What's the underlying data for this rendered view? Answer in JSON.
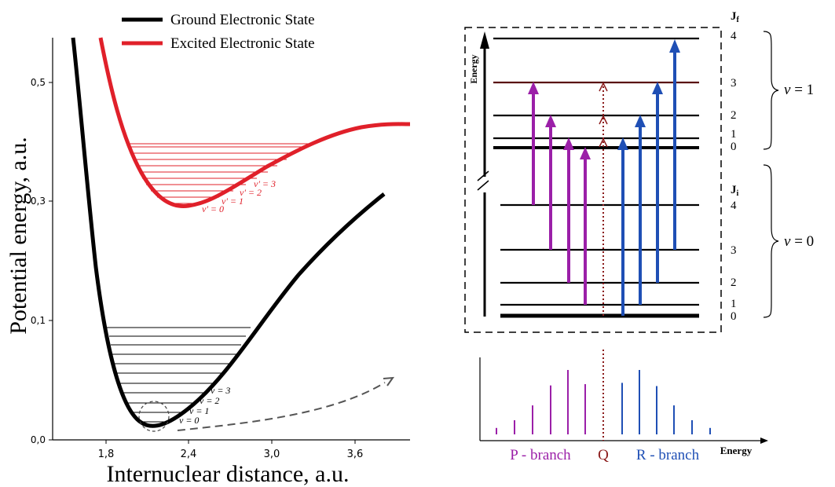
{
  "potential_plot": {
    "legend": {
      "ground": "Ground Electronic State",
      "excited": "Excited Electronic State"
    },
    "xlabel": "Internuclear distance, a.u.",
    "ylabel": "Potential energy, a.u.",
    "xticks": [
      "1,8",
      "2,4",
      "3,0",
      "3,6"
    ],
    "yticks": [
      "0,0",
      "0,1",
      "0,3",
      "0,5"
    ],
    "ground_levels": [
      "v = 0",
      "v = 1",
      "v = 2",
      "v = 3"
    ],
    "excited_levels": [
      "v' = 0",
      "v' = 1",
      "v' = 2",
      "v' = 3"
    ],
    "colors": {
      "ground": "#000000",
      "excited": "#e0202a"
    }
  },
  "level_diagram": {
    "axis_label": "Energy",
    "upper_j_label": "J",
    "upper_j_sub": "f",
    "lower_j_label": "J",
    "lower_j_sub": "i",
    "upper_j": [
      "4",
      "3",
      "2",
      "1",
      "0"
    ],
    "lower_j": [
      "4",
      "3",
      "2",
      "1",
      "0"
    ],
    "upper_band": {
      "v": "v",
      "eq": " = 1"
    },
    "lower_band": {
      "v": "v",
      "eq": " = 0"
    },
    "colors": {
      "p": "#9b1fa8",
      "q": "#8b1a1a",
      "r": "#1f4fb5"
    }
  },
  "spectrum": {
    "p_label": "P - branch",
    "q_label": "Q",
    "r_label": "R - branch",
    "axis_label": "Energy",
    "p_lines": [
      0.1,
      0.22,
      0.45,
      0.76,
      1.0,
      0.78
    ],
    "r_lines": [
      0.8,
      1.0,
      0.75,
      0.45,
      0.22,
      0.1
    ]
  }
}
